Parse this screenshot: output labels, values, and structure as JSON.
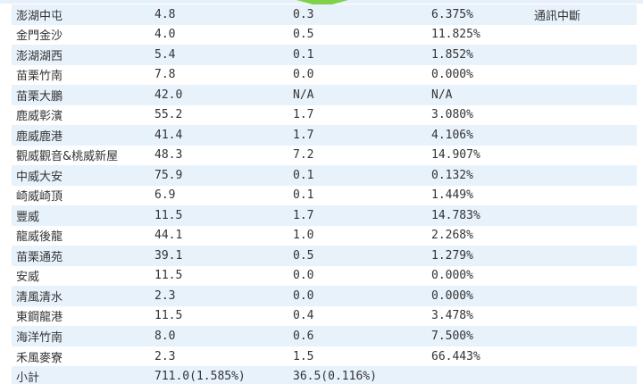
{
  "colors": {
    "row_stripe": "#e8f2fb",
    "row_plain": "#ffffff",
    "text": "#333333",
    "arrow": "#7fd14a"
  },
  "icons": {
    "top_indicator": "triangle-down-icon"
  },
  "rows": [
    {
      "name": "澎湖中屯",
      "col2": "4.8",
      "col3": "0.3",
      "col4": "6.375%",
      "note": "通訊中斷"
    },
    {
      "name": "金門金沙",
      "col2": "4.0",
      "col3": "0.5",
      "col4": "11.825%",
      "note": ""
    },
    {
      "name": "澎湖湖西",
      "col2": "5.4",
      "col3": "0.1",
      "col4": "1.852%",
      "note": ""
    },
    {
      "name": "苗栗竹南",
      "col2": "7.8",
      "col3": "0.0",
      "col4": "0.000%",
      "note": ""
    },
    {
      "name": "苗栗大鵬",
      "col2": "42.0",
      "col3": "N/A",
      "col4": "N/A",
      "note": ""
    },
    {
      "name": "鹿威彰濱",
      "col2": "55.2",
      "col3": "1.7",
      "col4": "3.080%",
      "note": ""
    },
    {
      "name": "鹿威鹿港",
      "col2": "41.4",
      "col3": "1.7",
      "col4": "4.106%",
      "note": ""
    },
    {
      "name": "觀威觀音&桃威新屋",
      "col2": "48.3",
      "col3": "7.2",
      "col4": "14.907%",
      "note": ""
    },
    {
      "name": "中威大安",
      "col2": "75.9",
      "col3": "0.1",
      "col4": "0.132%",
      "note": ""
    },
    {
      "name": "崎威崎頂",
      "col2": "6.9",
      "col3": "0.1",
      "col4": "1.449%",
      "note": ""
    },
    {
      "name": "豐威",
      "col2": "11.5",
      "col3": "1.7",
      "col4": "14.783%",
      "note": ""
    },
    {
      "name": "龍威後龍",
      "col2": "44.1",
      "col3": "1.0",
      "col4": "2.268%",
      "note": ""
    },
    {
      "name": "苗栗通苑",
      "col2": "39.1",
      "col3": "0.5",
      "col4": "1.279%",
      "note": ""
    },
    {
      "name": "安威",
      "col2": "11.5",
      "col3": "0.0",
      "col4": "0.000%",
      "note": ""
    },
    {
      "name": "清風清水",
      "col2": "2.3",
      "col3": "0.0",
      "col4": "0.000%",
      "note": ""
    },
    {
      "name": "東鋼龍港",
      "col2": "11.5",
      "col3": "0.4",
      "col4": "3.478%",
      "note": ""
    },
    {
      "name": "海洋竹南",
      "col2": "8.0",
      "col3": "0.6",
      "col4": "7.500%",
      "note": ""
    },
    {
      "name": "禾風麥寮",
      "col2": "2.3",
      "col3": "1.5",
      "col4": "66.443%",
      "note": ""
    },
    {
      "name": "小計",
      "col2": "711.0(1.585%)",
      "col3": "36.5(0.116%)",
      "col4": "",
      "note": ""
    }
  ]
}
